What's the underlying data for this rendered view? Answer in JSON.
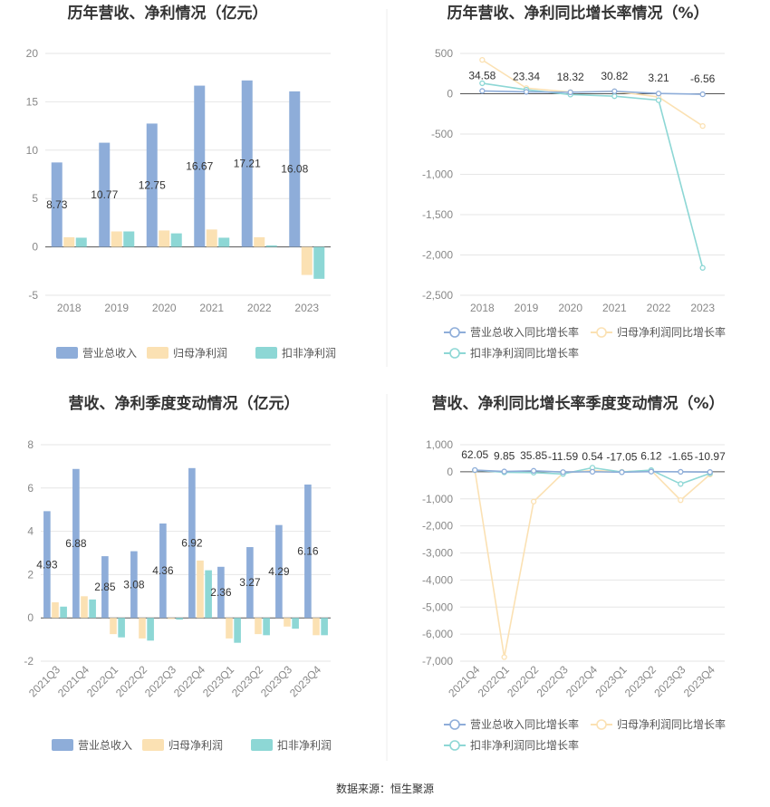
{
  "colors": {
    "revenue": "#8eadd9",
    "parent_profit": "#fbe1b3",
    "deducted_profit": "#8dd7d5",
    "revenue_line": "#8eadd9",
    "parent_line": "#fbe1b3",
    "deducted_line": "#8dd7d5",
    "grid": "#e6e6e6",
    "axis": "#555555"
  },
  "footer": {
    "source": "数据来源：恒生聚源"
  },
  "chart_data": [
    {
      "type": "bar",
      "title": "历年营收、净利情况（亿元）",
      "categories": [
        "2018",
        "2019",
        "2020",
        "2021",
        "2022",
        "2023"
      ],
      "ylim": [
        -5,
        20
      ],
      "yticks": [
        -5,
        0,
        5,
        10,
        15,
        20
      ],
      "series": [
        {
          "name": "营业总收入",
          "values": [
            8.73,
            10.77,
            12.75,
            16.67,
            17.21,
            16.08
          ],
          "labels": [
            "8.73",
            "10.77",
            "12.75",
            "16.67",
            "17.21",
            "16.08"
          ]
        },
        {
          "name": "归母净利润",
          "values": [
            1.0,
            1.6,
            1.7,
            1.8,
            1.0,
            -2.9
          ]
        },
        {
          "name": "扣非净利润",
          "values": [
            0.95,
            1.6,
            1.4,
            0.95,
            0.15,
            -3.3
          ]
        }
      ],
      "legend": "bottom"
    },
    {
      "type": "line",
      "title": "历年营收、净利同比增长率情况（%）",
      "categories": [
        "2018",
        "2019",
        "2020",
        "2021",
        "2022",
        "2023"
      ],
      "ylim": [
        -2500,
        500
      ],
      "yticks": [
        -2500,
        -2000,
        -1500,
        -1000,
        -500,
        0,
        500
      ],
      "ytick_labels": [
        "-2,500",
        "-2,000",
        "-1,500",
        "-1,000",
        "-500",
        "0",
        "500"
      ],
      "series": [
        {
          "name": "营业总收入同比增长率",
          "values": [
            34.58,
            23.34,
            18.32,
            30.82,
            3.21,
            -6.56
          ],
          "labels": [
            "34.58",
            "23.34",
            "18.32",
            "30.82",
            "3.21",
            "-6.56"
          ]
        },
        {
          "name": "归母净利润同比增长率",
          "values": [
            420,
            70,
            20,
            30,
            -40,
            -400
          ]
        },
        {
          "name": "扣非净利润同比增长率",
          "values": [
            130,
            50,
            -10,
            -30,
            -80,
            -2160
          ]
        }
      ],
      "legend": "bottom"
    },
    {
      "type": "bar",
      "title": "营收、净利季度变动情况（亿元）",
      "categories": [
        "2021Q3",
        "2021Q4",
        "2022Q1",
        "2022Q2",
        "2022Q3",
        "2022Q4",
        "2023Q1",
        "2023Q2",
        "2023Q3",
        "2023Q4"
      ],
      "ylim": [
        -2,
        8
      ],
      "yticks": [
        -2,
        0,
        2,
        4,
        6,
        8
      ],
      "series": [
        {
          "name": "营业总收入",
          "values": [
            4.93,
            6.88,
            2.85,
            3.08,
            4.36,
            6.92,
            2.36,
            3.27,
            4.29,
            6.16
          ],
          "labels": [
            "4.93",
            "6.88",
            "2.85",
            "3.08",
            "4.36",
            "6.92",
            "2.36",
            "3.27",
            "4.29",
            "6.16"
          ]
        },
        {
          "name": "归母净利润",
          "values": [
            0.72,
            1.0,
            -0.75,
            -0.95,
            -0.05,
            2.65,
            -0.95,
            -0.75,
            -0.4,
            -0.8
          ]
        },
        {
          "name": "扣非净利润",
          "values": [
            0.52,
            0.85,
            -0.9,
            -1.05,
            -0.08,
            2.2,
            -1.15,
            -0.8,
            -0.5,
            -0.8
          ]
        }
      ],
      "legend": "bottom"
    },
    {
      "type": "line",
      "title": "营收、净利同比增长率季度变动情况（%）",
      "categories": [
        "2021Q4",
        "2022Q1",
        "2022Q2",
        "2022Q3",
        "2022Q4",
        "2023Q1",
        "2023Q2",
        "2023Q3",
        "2023Q4"
      ],
      "ylim": [
        -7000,
        1000
      ],
      "yticks": [
        -7000,
        -6000,
        -5000,
        -4000,
        -3000,
        -2000,
        -1000,
        0,
        1000
      ],
      "ytick_labels": [
        "-7,000",
        "-6,000",
        "-5,000",
        "-4,000",
        "-3,000",
        "-2,000",
        "-1,000",
        "0",
        "1,000"
      ],
      "series": [
        {
          "name": "营业总收入同比增长率",
          "values": [
            62.05,
            9.85,
            35.85,
            -11.59,
            0.54,
            -17.05,
            6.12,
            -1.65,
            -10.97
          ],
          "labels": [
            "62.05",
            "9.85",
            "35.85",
            "-11.59",
            "0.54",
            "-17.05",
            "6.12",
            "-1.65",
            "-10.97"
          ]
        },
        {
          "name": "归母净利润同比增长率",
          "values": [
            50,
            -6850,
            -1100,
            -50,
            50,
            0,
            50,
            -1050,
            -100
          ]
        },
        {
          "name": "扣非净利润同比增长率",
          "values": [
            60,
            -20,
            -30,
            -80,
            150,
            -10,
            60,
            -450,
            -60
          ]
        }
      ],
      "legend": "bottom"
    }
  ]
}
